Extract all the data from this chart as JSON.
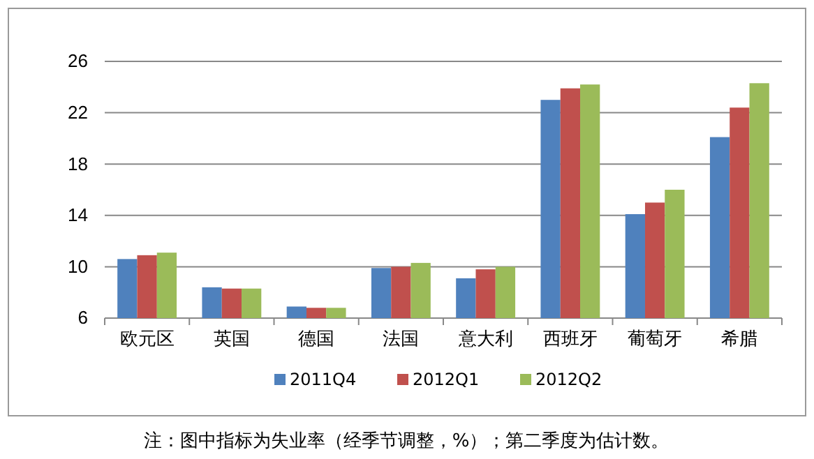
{
  "chart_data": {
    "type": "bar",
    "categories": [
      "欧元区",
      "英国",
      "德国",
      "法国",
      "意大利",
      "西班牙",
      "葡萄牙",
      "希腊"
    ],
    "series": [
      {
        "name": "2011Q4",
        "color": "#4f81bd",
        "values": [
          10.6,
          8.4,
          6.9,
          9.9,
          9.1,
          23.0,
          14.1,
          20.1
        ]
      },
      {
        "name": "2012Q1",
        "color": "#c0504d",
        "values": [
          10.9,
          8.3,
          6.8,
          10.0,
          9.8,
          23.9,
          15.0,
          22.4
        ]
      },
      {
        "name": "2012Q2",
        "color": "#9bbb59",
        "values": [
          11.1,
          8.3,
          6.8,
          10.3,
          10.0,
          24.2,
          16.0,
          24.3
        ]
      }
    ],
    "ylim": [
      6,
      26
    ],
    "yticks": [
      6,
      10,
      14,
      18,
      22,
      26
    ],
    "grid": "y",
    "legend": "bottom",
    "annotations": [
      "注：图中指标为失业率（经季节调整，%）；第二季度为估计数。"
    ]
  }
}
